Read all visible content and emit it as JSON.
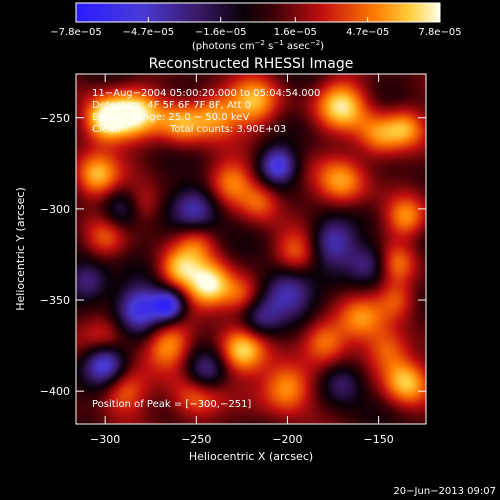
{
  "chart_data": {
    "type": "heatmap",
    "title": "Reconstructed RHESSI Image",
    "xlabel": "Heliocentric X (arcsec)",
    "ylabel": "Heliocentric Y (arcsec)",
    "xlim": [
      -316,
      -124
    ],
    "ylim": [
      -418,
      -226
    ],
    "x_ticks": [
      -300,
      -250,
      -200,
      -150
    ],
    "x_tick_labels": [
      "−300",
      "−250",
      "−200",
      "−150"
    ],
    "y_ticks": [
      -250,
      -300,
      -350,
      -400
    ],
    "y_tick_labels": [
      "−250",
      "−300",
      "−350",
      "−400"
    ],
    "colorbar": {
      "min": -7.8e-05,
      "max": 7.8e-05,
      "ticks": [
        -7.8e-05,
        -4.7e-05,
        -1.6e-05,
        1.6e-05,
        4.7e-05,
        7.8e-05
      ],
      "tick_labels": [
        "−7.8e−05",
        "−4.7e−05",
        "−1.6e−05",
        "1.6e−05",
        "4.7e−05",
        "7.8e−05"
      ],
      "unit_label_main": "(photons cm",
      "unit_exp_1": "−2",
      "unit_mid_1": " s",
      "unit_exp_2": "−1",
      "unit_mid_2": " asec",
      "unit_exp_3": "−2",
      "unit_close": ")"
    },
    "annotations": {
      "time_range": "11−Aug−2004 05:00:20.000 to 05:04:54.000",
      "detectors": "Detectors: 4F 5F 6F 7F 8F, Att 0",
      "energy_range": "Energy Range: 25.0 − 50.0 keV",
      "algorithm": "Clean",
      "total_counts": "Total counts: 3.90E+03",
      "peak_position": "Position of Peak = [−300,−251]"
    },
    "peak": {
      "x": -300,
      "y": -251
    },
    "blobs": [
      {
        "x": -300,
        "y": -251,
        "s": 9,
        "a": 2.0
      },
      {
        "x": -283,
        "y": -248,
        "s": 10,
        "a": 1.6
      },
      {
        "x": -258,
        "y": -253,
        "s": 9,
        "a": 1.3
      },
      {
        "x": -240,
        "y": -248,
        "s": 9,
        "a": 1.2
      },
      {
        "x": -218,
        "y": -242,
        "s": 10,
        "a": 1.4
      },
      {
        "x": -170,
        "y": -243,
        "s": 10,
        "a": 1.6
      },
      {
        "x": -150,
        "y": -260,
        "s": 9,
        "a": 1.2
      },
      {
        "x": -135,
        "y": -255,
        "s": 8,
        "a": 1.1
      },
      {
        "x": -305,
        "y": -282,
        "s": 9,
        "a": 1.5
      },
      {
        "x": -280,
        "y": -298,
        "s": 8,
        "a": 0.9
      },
      {
        "x": -230,
        "y": -285,
        "s": 9,
        "a": 1.2
      },
      {
        "x": -215,
        "y": -296,
        "s": 8,
        "a": 1.0
      },
      {
        "x": -170,
        "y": -285,
        "s": 10,
        "a": 1.3
      },
      {
        "x": -135,
        "y": -305,
        "s": 8,
        "a": 1.2
      },
      {
        "x": -300,
        "y": -316,
        "s": 8,
        "a": 0.8
      },
      {
        "x": -250,
        "y": -318,
        "s": 8,
        "a": 0.9
      },
      {
        "x": -195,
        "y": -325,
        "s": 9,
        "a": 1.1
      },
      {
        "x": -140,
        "y": -330,
        "s": 8,
        "a": 1.0
      },
      {
        "x": -260,
        "y": -333,
        "s": 8,
        "a": 1.3
      },
      {
        "x": -243,
        "y": -342,
        "s": 9,
        "a": 2.0
      },
      {
        "x": -225,
        "y": -348,
        "s": 8,
        "a": 1.0
      },
      {
        "x": -160,
        "y": -360,
        "s": 9,
        "a": 1.0
      },
      {
        "x": -140,
        "y": -350,
        "s": 8,
        "a": 1.0
      },
      {
        "x": -300,
        "y": -370,
        "s": 9,
        "a": 0.9
      },
      {
        "x": -265,
        "y": -375,
        "s": 9,
        "a": 1.3
      },
      {
        "x": -225,
        "y": -378,
        "s": 9,
        "a": 1.6
      },
      {
        "x": -180,
        "y": -372,
        "s": 9,
        "a": 1.2
      },
      {
        "x": -145,
        "y": -378,
        "s": 9,
        "a": 1.1
      },
      {
        "x": -290,
        "y": -400,
        "s": 9,
        "a": 1.1
      },
      {
        "x": -250,
        "y": -403,
        "s": 10,
        "a": 1.2
      },
      {
        "x": -200,
        "y": -398,
        "s": 10,
        "a": 1.5
      },
      {
        "x": -135,
        "y": -395,
        "s": 9,
        "a": 1.5
      },
      {
        "x": -310,
        "y": -340,
        "s": 8,
        "a": -1.2
      },
      {
        "x": -280,
        "y": -355,
        "s": 9,
        "a": -1.8
      },
      {
        "x": -265,
        "y": -353,
        "s": 6,
        "a": -2.0
      },
      {
        "x": -250,
        "y": -300,
        "s": 9,
        "a": -1.4
      },
      {
        "x": -205,
        "y": -276,
        "s": 7,
        "a": -1.7
      },
      {
        "x": -175,
        "y": -318,
        "s": 9,
        "a": -1.3
      },
      {
        "x": -200,
        "y": -345,
        "s": 10,
        "a": -1.5
      },
      {
        "x": -155,
        "y": -330,
        "s": 8,
        "a": -1.1
      },
      {
        "x": -300,
        "y": -385,
        "s": 8,
        "a": -1.8
      },
      {
        "x": -245,
        "y": -390,
        "s": 8,
        "a": -1.2
      },
      {
        "x": -215,
        "y": -360,
        "s": 8,
        "a": -1.0
      },
      {
        "x": -290,
        "y": -300,
        "s": 8,
        "a": -1.0
      },
      {
        "x": -170,
        "y": -395,
        "s": 8,
        "a": -1.0
      }
    ]
  },
  "footer": {
    "timestamp": "20−Jun−2013 09:07"
  }
}
